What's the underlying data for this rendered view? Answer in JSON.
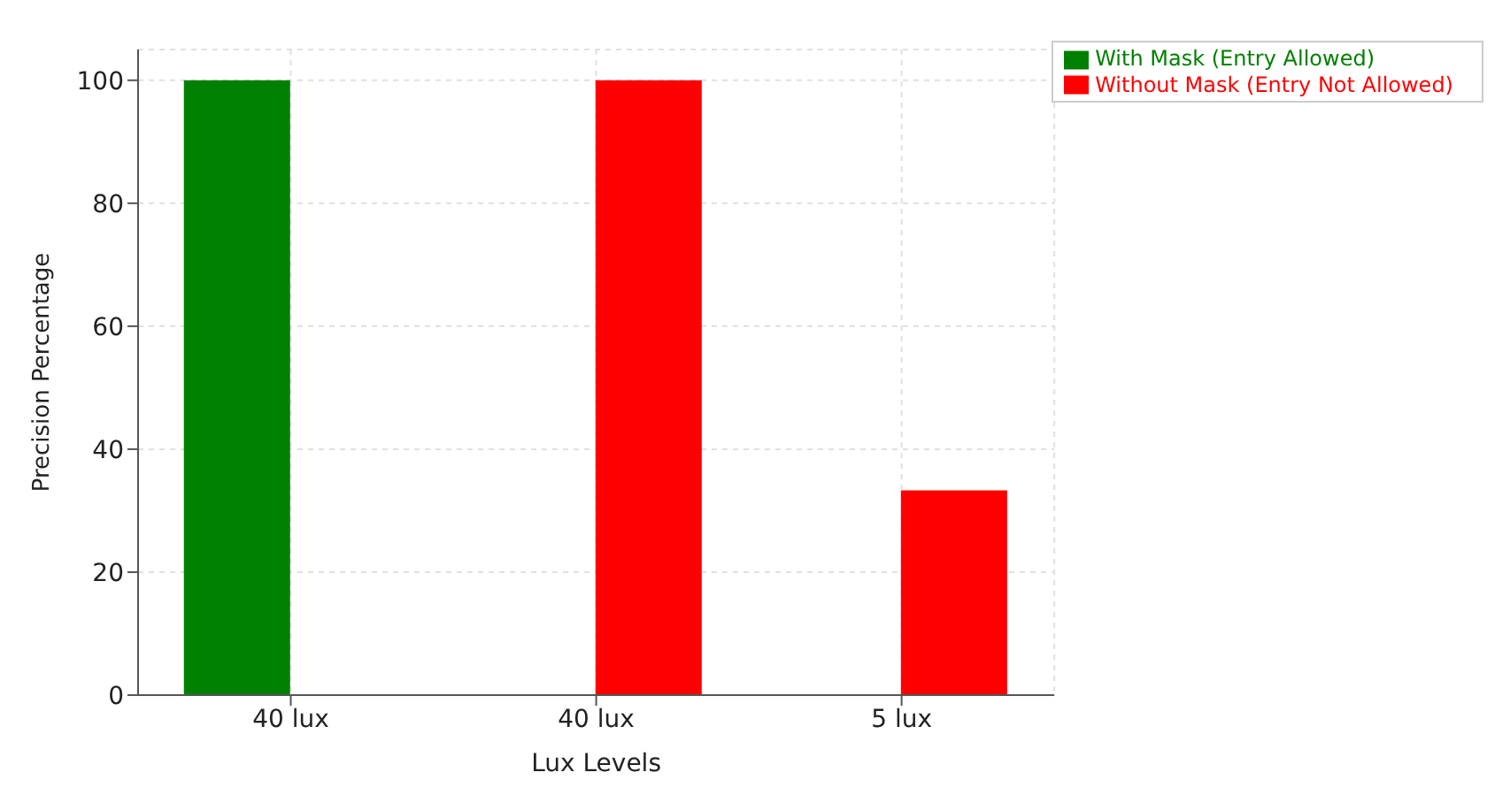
{
  "chart_data": {
    "type": "bar",
    "xlabel": "Lux Levels",
    "ylabel": "Precision Percentage",
    "categories": [
      "40 lux",
      "40 lux",
      "5 lux"
    ],
    "series": [
      {
        "name": "With Mask (Entry Allowed)",
        "color": "#008000",
        "values": [
          100,
          null,
          null
        ]
      },
      {
        "name": "Without Mask (Entry Not Allowed)",
        "color": "#ff0000",
        "values": [
          null,
          100,
          33.3
        ]
      }
    ],
    "ylim": [
      0,
      105
    ],
    "yticks": [
      0,
      20,
      40,
      60,
      80,
      100
    ],
    "grid": true,
    "legend": "top right"
  }
}
